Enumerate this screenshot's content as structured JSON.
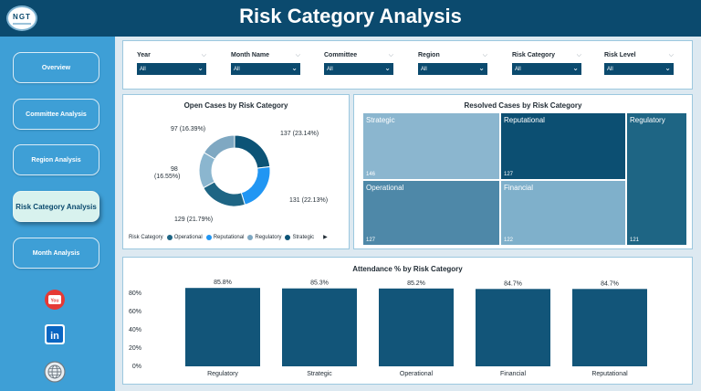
{
  "header": {
    "title": "Risk Category Analysis",
    "logo_text": "NGT"
  },
  "nav": [
    {
      "label": "Overview",
      "active": false
    },
    {
      "label": "Committee Analysis",
      "active": false
    },
    {
      "label": "Region Analysis",
      "active": false
    },
    {
      "label": "Risk Category Analysis",
      "active": true
    },
    {
      "label": "Month Analysis",
      "active": false
    }
  ],
  "social": {
    "youtube": "You",
    "linkedin": "in"
  },
  "filters": [
    {
      "label": "Year",
      "value": "All"
    },
    {
      "label": "Month Name",
      "value": "All"
    },
    {
      "label": "Committee",
      "value": "All"
    },
    {
      "label": "Region",
      "value": "All"
    },
    {
      "label": "Risk Category",
      "value": "All"
    },
    {
      "label": "Risk Level",
      "value": "All"
    }
  ],
  "open_cases": {
    "title": "Open Cases by Risk Category",
    "legend_title": "Risk Category",
    "labels": [
      "137 (23.14%)",
      "131 (22.13%)",
      "129 (21.79%)",
      "98",
      "(16.55%)",
      "97 (16.39%)"
    ]
  },
  "resolved": {
    "title": "Resolved Cases by Risk Category"
  },
  "attendance": {
    "title": "Attendance % by Risk Category",
    "y_ticks": [
      "0%",
      "20%",
      "40%",
      "60%",
      "80%"
    ]
  },
  "colors": {
    "operational": "#1e6584",
    "reputational": "#2196f3",
    "regulatory": "#7fa8c2",
    "strategic": "#0c5376",
    "financial": "#8bb6cf",
    "bar": "#125579"
  },
  "chart_data": [
    {
      "type": "pie",
      "title": "Open Cases by Risk Category",
      "legend_title": "Risk Category",
      "categories": [
        "Strategic",
        "Reputational",
        "Operational",
        "Financial",
        "Regulatory"
      ],
      "series_legend": [
        "Operational",
        "Reputational",
        "Regulatory",
        "Strategic"
      ],
      "values": [
        137,
        131,
        129,
        98,
        97
      ],
      "percents": [
        23.14,
        22.13,
        21.79,
        16.55,
        16.39
      ]
    },
    {
      "type": "treemap",
      "title": "Resolved Cases by Risk Category",
      "categories": [
        "Strategic",
        "Reputational",
        "Regulatory",
        "Operational",
        "Financial"
      ],
      "values": [
        146,
        127,
        121,
        127,
        122
      ]
    },
    {
      "type": "bar",
      "title": "Attendance % by Risk Category",
      "categories": [
        "Regulatory",
        "Strategic",
        "Operational",
        "Financial",
        "Reputational"
      ],
      "values": [
        85.8,
        85.3,
        85.2,
        84.7,
        84.7
      ],
      "value_labels": [
        "85.8%",
        "85.3%",
        "85.2%",
        "84.7%",
        "84.7%"
      ],
      "ylim": [
        0,
        100
      ],
      "y_ticks": [
        "0%",
        "20%",
        "40%",
        "60%",
        "80%"
      ]
    }
  ]
}
